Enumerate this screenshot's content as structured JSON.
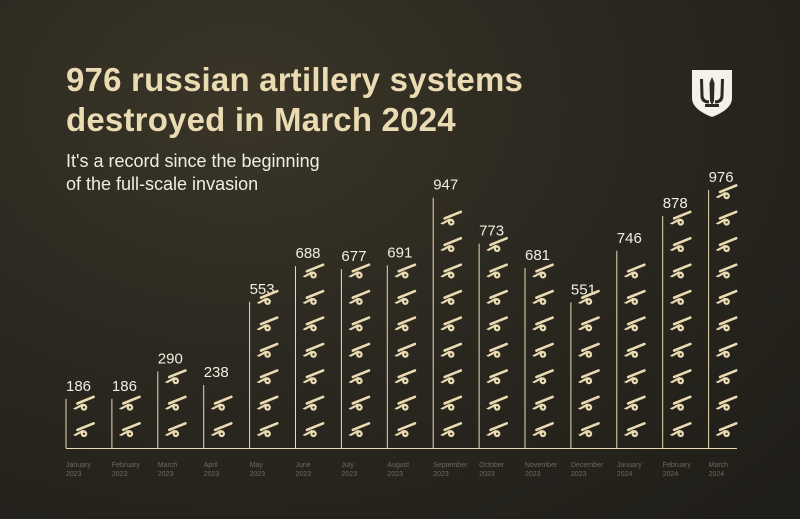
{
  "header": {
    "title_line1": "976 russian artillery systems",
    "title_line2": "destroyed in March 2024",
    "subtitle_line1": "It's a record since the beginning",
    "subtitle_line2": "of the full-scale invasion"
  },
  "colors": {
    "accent": "#eadbb3",
    "text": "#f1ede2",
    "muted": "#6f6a5e",
    "background": "#2b2820"
  },
  "icons": {
    "emblem": "trident-shield-icon",
    "unit": "howitzer-icon"
  },
  "chart_data": {
    "type": "bar",
    "title": "976 russian artillery systems destroyed in March 2024",
    "subtitle": "It's a record since the beginning of the full-scale invasion",
    "categories": [
      [
        "January",
        "2023"
      ],
      [
        "February",
        "2023"
      ],
      [
        "March",
        "2023"
      ],
      [
        "April",
        "2023"
      ],
      [
        "May",
        "2023"
      ],
      [
        "June",
        "2023"
      ],
      [
        "July",
        "2023"
      ],
      [
        "August",
        "2023"
      ],
      [
        "September",
        "2023"
      ],
      [
        "October",
        "2023"
      ],
      [
        "November",
        "2023"
      ],
      [
        "December",
        "2023"
      ],
      [
        "January",
        "2024"
      ],
      [
        "February",
        "2024"
      ],
      [
        "March",
        "2024"
      ]
    ],
    "values": [
      186,
      186,
      290,
      238,
      553,
      688,
      677,
      691,
      947,
      773,
      681,
      551,
      746,
      878,
      976
    ],
    "units_per_icon": 100,
    "grid": false,
    "legend": "none"
  }
}
